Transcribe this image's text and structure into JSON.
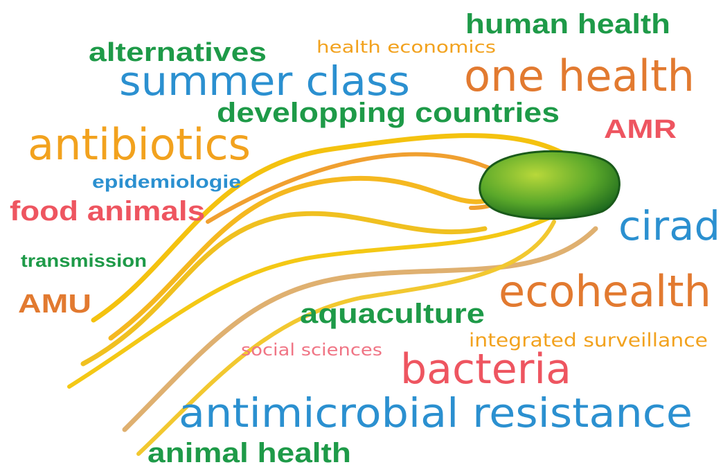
{
  "words": [
    {
      "text": "human health",
      "color": "#1e9a48"
    },
    {
      "text": "health economics",
      "color": "#f2a21e"
    },
    {
      "text": "alternatives",
      "color": "#1e9a48"
    },
    {
      "text": "summer class",
      "color": "#2b90d0"
    },
    {
      "text": "one health",
      "color": "#e27a30"
    },
    {
      "text": "developping countries",
      "color": "#1e9a48"
    },
    {
      "text": "AMR",
      "color": "#ee5560"
    },
    {
      "text": "antibiotics",
      "color": "#f2a21e"
    },
    {
      "text": "epidemiologie",
      "color": "#2b90d0"
    },
    {
      "text": "food animals",
      "color": "#ee5560"
    },
    {
      "text": "cirad",
      "color": "#2b90d0"
    },
    {
      "text": "transmission",
      "color": "#1e9a48"
    },
    {
      "text": "AMU",
      "color": "#e27a30"
    },
    {
      "text": "ecohealth",
      "color": "#e27a30"
    },
    {
      "text": "aquaculture",
      "color": "#1e9a48"
    },
    {
      "text": "integrated surveillance",
      "color": "#f2a21e"
    },
    {
      "text": "social sciences",
      "color": "#f07585"
    },
    {
      "text": "bacteria",
      "color": "#ee5560"
    },
    {
      "text": "antimicrobial resistance",
      "color": "#2b90d0"
    },
    {
      "text": "animal health",
      "color": "#1e9a48"
    }
  ]
}
